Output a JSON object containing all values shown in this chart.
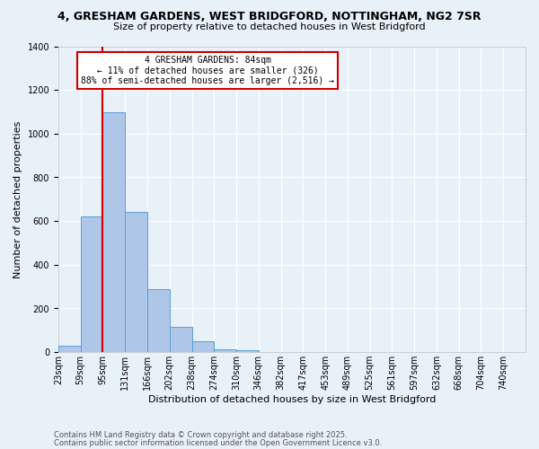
{
  "title1": "4, GRESHAM GARDENS, WEST BRIDGFORD, NOTTINGHAM, NG2 7SR",
  "title2": "Size of property relative to detached houses in West Bridgford",
  "xlabel": "Distribution of detached houses by size in West Bridgford",
  "ylabel": "Number of detached properties",
  "bin_labels": [
    "23sqm",
    "59sqm",
    "95sqm",
    "131sqm",
    "166sqm",
    "202sqm",
    "238sqm",
    "274sqm",
    "310sqm",
    "346sqm",
    "382sqm",
    "417sqm",
    "453sqm",
    "489sqm",
    "525sqm",
    "561sqm",
    "597sqm",
    "632sqm",
    "668sqm",
    "704sqm",
    "740sqm"
  ],
  "bar_heights": [
    30,
    620,
    1100,
    640,
    290,
    115,
    50,
    15,
    10,
    0,
    0,
    0,
    0,
    0,
    0,
    0,
    0,
    0,
    0,
    0,
    0
  ],
  "bar_color": "#aec6e8",
  "bar_edge_color": "#5a9fd4",
  "background_color": "#e8f0f8",
  "grid_color": "#ffffff",
  "ylim": [
    0,
    1400
  ],
  "yticks": [
    0,
    200,
    400,
    600,
    800,
    1000,
    1200,
    1400
  ],
  "red_line_after_bin": 1,
  "annotation_title": "4 GRESHAM GARDENS: 84sqm",
  "annotation_line1": "← 11% of detached houses are smaller (326)",
  "annotation_line2": "88% of semi-detached houses are larger (2,516) →",
  "annotation_box_color": "#ffffff",
  "annotation_box_edge": "#cc0000",
  "red_line_color": "#cc0000",
  "footer1": "Contains HM Land Registry data © Crown copyright and database right 2025.",
  "footer2": "Contains public sector information licensed under the Open Government Licence v3.0.",
  "title1_fontsize": 9,
  "title2_fontsize": 8,
  "ylabel_fontsize": 8,
  "xlabel_fontsize": 8,
  "tick_fontsize": 7,
  "footer_fontsize": 6
}
